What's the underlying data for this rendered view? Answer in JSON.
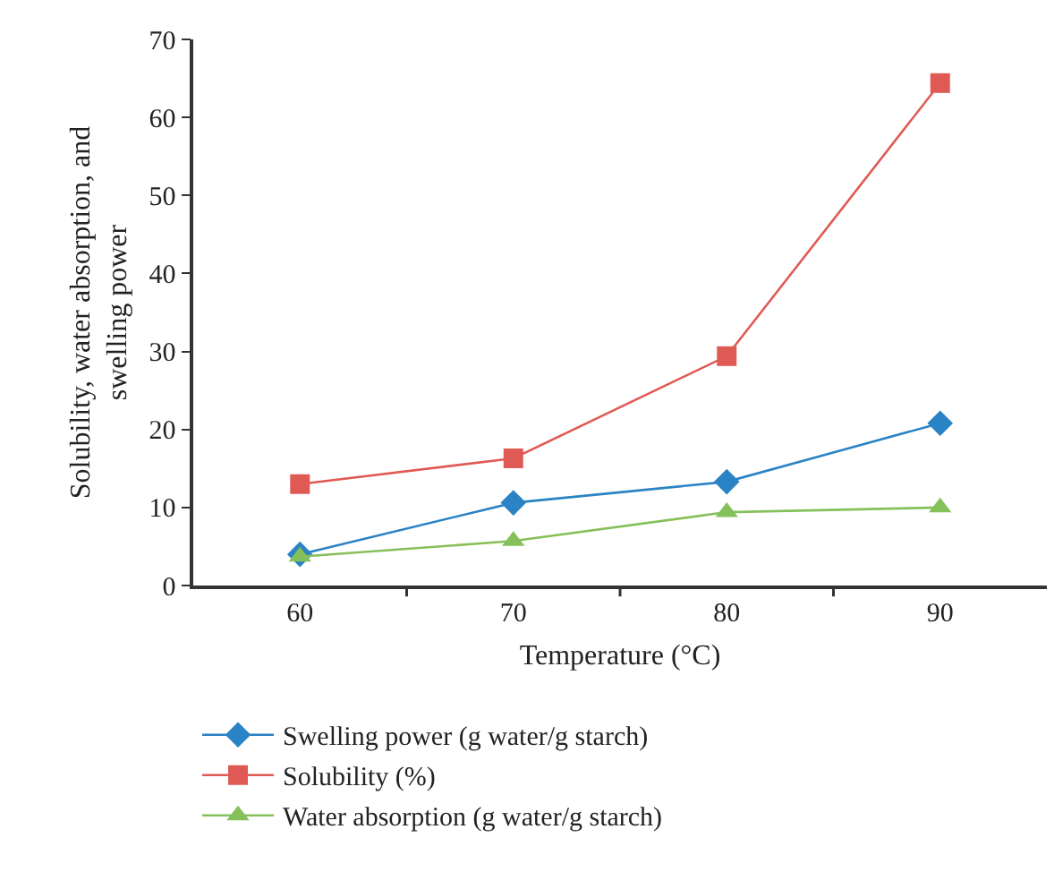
{
  "chart_data": {
    "type": "line",
    "xlabel": "Temperature (°C)",
    "ylabel": "Solubility, water absorption, and swelling power",
    "categories": [
      "60",
      "70",
      "80",
      "90"
    ],
    "series": [
      {
        "name": "Swelling power (g water/g starch)",
        "color": "#2a83c4",
        "marker": "diamond",
        "values": [
          4.0,
          10.6,
          13.3,
          20.8
        ]
      },
      {
        "name": "Solubility (%)",
        "color": "#e05a55",
        "marker": "square",
        "values": [
          13.0,
          16.3,
          29.4,
          64.4
        ]
      },
      {
        "name": "Water absorption (g water/g starch)",
        "color": "#86c05a",
        "marker": "triangle",
        "values": [
          3.7,
          5.7,
          9.4,
          10.0
        ]
      }
    ],
    "ylim": [
      0,
      70
    ],
    "yticks": [
      0,
      10,
      20,
      30,
      40,
      50,
      60,
      70
    ],
    "grid": false,
    "legend": "bottom",
    "line_style": "solid"
  }
}
